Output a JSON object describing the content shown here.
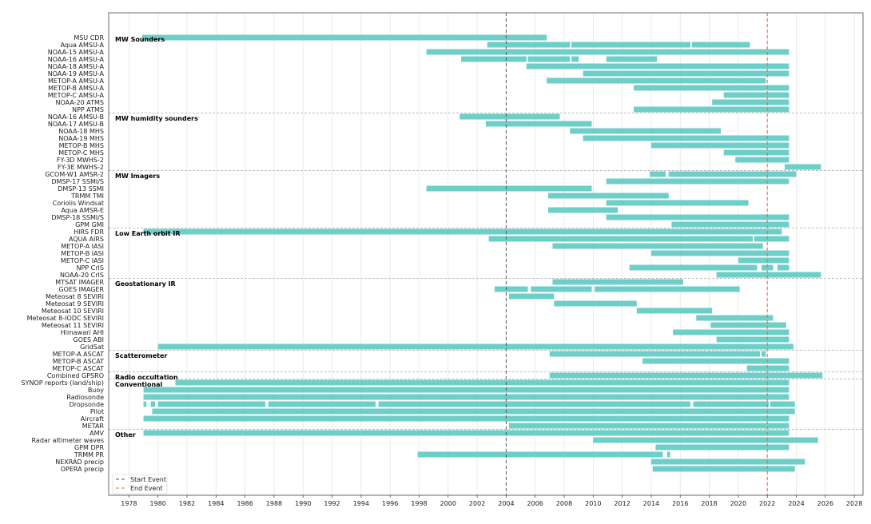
{
  "chart_data": {
    "type": "timeline",
    "title": "",
    "xlabel": "",
    "ylabel": "",
    "xlim": [
      1976.6,
      2028.6
    ],
    "xticks": [
      1978,
      1980,
      1982,
      1984,
      1986,
      1988,
      1990,
      1992,
      1994,
      1996,
      1998,
      2000,
      2002,
      2004,
      2006,
      2008,
      2010,
      2012,
      2014,
      2016,
      2018,
      2020,
      2022,
      2024,
      2026,
      2028
    ],
    "grid": "vertical",
    "bar_color": "#6ecfc8",
    "groups": [
      {
        "label": "MW Sounders",
        "rows": [
          {
            "name": "MSU CDR",
            "segments": [
              [
                1978.9,
                2006.8
              ]
            ]
          },
          {
            "name": "Aqua AMSU-A",
            "segments": [
              [
                2002.7,
                2008.4
              ],
              [
                2008.5,
                2016.7
              ],
              [
                2016.8,
                2020.8
              ]
            ]
          },
          {
            "name": "NOAA-15 AMSU-A",
            "segments": [
              [
                1998.5,
                2023.5
              ]
            ]
          },
          {
            "name": "NOAA-16 AMSU-A",
            "segments": [
              [
                2000.9,
                2005.4
              ],
              [
                2005.5,
                2008.4
              ],
              [
                2008.5,
                2009.0
              ],
              [
                2010.9,
                2014.4
              ]
            ]
          },
          {
            "name": "NOAA-18 AMSU-A",
            "segments": [
              [
                2005.4,
                2023.5
              ]
            ]
          },
          {
            "name": "NOAA-19 AMSU-A",
            "segments": [
              [
                2009.3,
                2023.5
              ]
            ]
          },
          {
            "name": "METOP-A AMSU-A",
            "segments": [
              [
                2006.8,
                2021.9
              ]
            ]
          },
          {
            "name": "METOP-B AMSU-A",
            "segments": [
              [
                2012.8,
                2023.5
              ]
            ]
          },
          {
            "name": "METOP-C AMSU-A",
            "segments": [
              [
                2019.0,
                2023.5
              ]
            ]
          },
          {
            "name": "NOAA-20 ATMS",
            "segments": [
              [
                2018.2,
                2023.5
              ]
            ]
          },
          {
            "name": "NPP ATMS",
            "segments": [
              [
                2012.8,
                2023.5
              ]
            ]
          }
        ]
      },
      {
        "label": "MW humidity sounders",
        "rows": [
          {
            "name": "NOAA-16 AMSU-B",
            "segments": [
              [
                2000.8,
                2007.7
              ]
            ]
          },
          {
            "name": "NOAA-17 AMSU-B",
            "segments": [
              [
                2002.6,
                2009.9
              ]
            ]
          },
          {
            "name": "NOAA-18 MHS",
            "segments": [
              [
                2008.4,
                2018.8
              ]
            ]
          },
          {
            "name": "NOAA-19 MHS",
            "segments": [
              [
                2009.3,
                2023.5
              ]
            ]
          },
          {
            "name": "METOP-B MHS",
            "segments": [
              [
                2014.0,
                2023.5
              ]
            ]
          },
          {
            "name": "METOP-C MHS",
            "segments": [
              [
                2019.0,
                2023.5
              ]
            ]
          },
          {
            "name": "FY-3D MWHS-2",
            "segments": [
              [
                2019.8,
                2023.5
              ]
            ]
          },
          {
            "name": "FY-3E MWHS-2",
            "segments": [
              [
                2023.2,
                2025.7
              ]
            ]
          }
        ]
      },
      {
        "label": "MW Imagers",
        "rows": [
          {
            "name": "GCOM-W1 AMSR-2",
            "segments": [
              [
                2013.9,
                2015.0
              ],
              [
                2015.2,
                2024.0
              ]
            ]
          },
          {
            "name": "DMSP-17 SSMI/S",
            "segments": [
              [
                2010.9,
                2023.5
              ]
            ]
          },
          {
            "name": "DMSP-13 SSMI",
            "segments": [
              [
                1998.5,
                2009.9
              ]
            ]
          },
          {
            "name": "TRMM TMI",
            "segments": [
              [
                2006.9,
                2015.2
              ]
            ]
          },
          {
            "name": "Coriolis Windsat",
            "segments": [
              [
                2010.9,
                2020.7
              ]
            ]
          },
          {
            "name": "Aqua AMSR-E",
            "segments": [
              [
                2006.9,
                2011.7
              ]
            ]
          },
          {
            "name": "DMSP-18 SSMI/S",
            "segments": [
              [
                2010.9,
                2023.5
              ]
            ]
          },
          {
            "name": "GPM GMI",
            "segments": [
              [
                2015.4,
                2023.5
              ]
            ]
          }
        ]
      },
      {
        "label": "Low Earth orbit IR",
        "rows": [
          {
            "name": "HIRS FDR",
            "segments": [
              [
                1979.0,
                2023.0
              ]
            ]
          },
          {
            "name": "AQUA AIRS",
            "segments": [
              [
                2002.8,
                2021.0
              ],
              [
                2021.1,
                2023.5
              ]
            ]
          },
          {
            "name": "METOP-A IASI",
            "segments": [
              [
                2007.2,
                2021.7
              ]
            ]
          },
          {
            "name": "METOP-B IASI",
            "segments": [
              [
                2014.0,
                2023.5
              ]
            ]
          },
          {
            "name": "METOP-C IASI",
            "segments": [
              [
                2020.0,
                2023.5
              ]
            ]
          },
          {
            "name": "NPP CrIS",
            "segments": [
              [
                2012.5,
                2021.3
              ],
              [
                2021.6,
                2022.4
              ],
              [
                2022.7,
                2023.5
              ]
            ]
          },
          {
            "name": "NOAA-20 CrIS",
            "segments": [
              [
                2018.5,
                2025.7
              ]
            ]
          }
        ]
      },
      {
        "label": "Geostationary IR",
        "rows": [
          {
            "name": "MTSAT IMAGER",
            "segments": [
              [
                2007.2,
                2016.2
              ]
            ]
          },
          {
            "name": "GOES IMAGER",
            "segments": [
              [
                2003.2,
                2005.5
              ],
              [
                2005.7,
                2009.9
              ],
              [
                2010.1,
                2020.1
              ]
            ]
          },
          {
            "name": "Meteosat 8 SEVIRI",
            "segments": [
              [
                2004.2,
                2007.3
              ]
            ]
          },
          {
            "name": "Meteosat 9 SEVIRI",
            "segments": [
              [
                2007.3,
                2013.0
              ]
            ]
          },
          {
            "name": "Meteosat 10 SEVIRI",
            "segments": [
              [
                2013.0,
                2018.2
              ]
            ]
          },
          {
            "name": "Meteosat 8-IODC SEVIRI",
            "segments": [
              [
                2017.1,
                2022.4
              ]
            ]
          },
          {
            "name": "Meteosat 11 SEVIRI",
            "segments": [
              [
                2018.1,
                2023.3
              ]
            ]
          },
          {
            "name": "Himawari AHI",
            "segments": [
              [
                2015.5,
                2023.5
              ]
            ]
          },
          {
            "name": "GOES ABI",
            "segments": [
              [
                2018.5,
                2023.5
              ]
            ]
          },
          {
            "name": "GridSat",
            "segments": [
              [
                1980.0,
                2023.8
              ]
            ]
          }
        ]
      },
      {
        "label": "Scatterometer",
        "rows": [
          {
            "name": "METOP-A ASCAT",
            "segments": [
              [
                2007.0,
                2021.5
              ],
              [
                2021.6,
                2021.9
              ]
            ]
          },
          {
            "name": "METOP-B ASCAT",
            "segments": [
              [
                2013.4,
                2023.5
              ]
            ]
          },
          {
            "name": "METOP-C ASCAT",
            "segments": [
              [
                2020.6,
                2023.5
              ]
            ]
          }
        ]
      },
      {
        "label": "Radio occultation",
        "rows": [
          {
            "name": "Combined GPSRO",
            "segments": [
              [
                2007.0,
                2025.8
              ]
            ]
          }
        ]
      },
      {
        "label": "Conventional",
        "rows": [
          {
            "name": "SYNOP reports (land/ship)",
            "segments": [
              [
                1981.2,
                2023.5
              ]
            ]
          },
          {
            "name": "Buoy",
            "segments": [
              [
                1979.0,
                2023.5
              ]
            ]
          },
          {
            "name": "Radiosonde",
            "segments": [
              [
                1979.0,
                2023.5
              ]
            ]
          },
          {
            "name": "Dropsonde",
            "segments": [
              [
                1979.0,
                1979.2
              ],
              [
                1979.5,
                1979.8
              ],
              [
                1980.0,
                1987.4
              ],
              [
                1987.6,
                1995.0
              ],
              [
                1995.2,
                2016.7
              ],
              [
                2016.9,
                2022.1
              ],
              [
                2022.2,
                2023.9
              ]
            ]
          },
          {
            "name": "Pilot",
            "segments": [
              [
                1979.6,
                2023.9
              ]
            ]
          },
          {
            "name": "Aircraft",
            "segments": [
              [
                1979.0,
                2023.5
              ]
            ]
          },
          {
            "name": "METAR",
            "segments": [
              [
                2004.2,
                2023.5
              ]
            ]
          }
        ]
      },
      {
        "label": "Other",
        "rows": [
          {
            "name": "AMV",
            "segments": [
              [
                1979.0,
                2023.5
              ]
            ]
          },
          {
            "name": "Radar altimeter waves",
            "segments": [
              [
                2010.0,
                2025.5
              ]
            ]
          },
          {
            "name": "GPM DPR",
            "segments": [
              [
                2014.3,
                2023.5
              ]
            ]
          },
          {
            "name": "TRMM PR",
            "segments": [
              [
                1997.9,
                2014.8
              ],
              [
                2015.1,
                2015.3
              ]
            ]
          },
          {
            "name": "NEXRAD precip",
            "segments": [
              [
                2014.0,
                2024.6
              ]
            ]
          },
          {
            "name": "OPERA precip",
            "segments": [
              [
                2014.1,
                2023.9
              ]
            ]
          }
        ]
      }
    ],
    "events": [
      {
        "name": "Start Event",
        "year": 2004.0,
        "color": "#555555"
      },
      {
        "name": "End Event",
        "year": 2022.0,
        "color": "#e8664a"
      }
    ],
    "legend_position": "bottom-left"
  }
}
